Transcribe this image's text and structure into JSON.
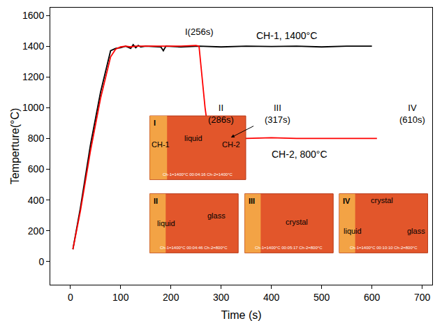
{
  "chart_data": {
    "type": "line",
    "x_label": "Time (s)",
    "y_label": "Temperture(°C)",
    "xlim": [
      -40,
      720
    ],
    "xticks": [
      0,
      100,
      200,
      300,
      400,
      500,
      600,
      700
    ],
    "ylim": [
      -150,
      1650
    ],
    "yticks": [
      0,
      200,
      400,
      600,
      800,
      1000,
      1200,
      1400,
      1600
    ],
    "grid": false,
    "series": [
      {
        "name": "CH-1, 1400°C",
        "color": "#000000",
        "label_at": [
          430,
          1468
        ],
        "x": [
          5,
          20,
          40,
          60,
          80,
          90,
          100,
          110,
          120,
          125,
          130,
          135,
          140,
          150,
          180,
          185,
          190,
          220,
          256,
          300,
          350,
          400,
          450,
          500,
          550,
          600
        ],
        "values": [
          80,
          350,
          760,
          1100,
          1370,
          1385,
          1390,
          1400,
          1385,
          1410,
          1390,
          1405,
          1395,
          1400,
          1395,
          1370,
          1400,
          1395,
          1400,
          1395,
          1400,
          1398,
          1400,
          1395,
          1400,
          1400
        ]
      },
      {
        "name": "CH-2, 800°C",
        "color": "#ff0000",
        "label_at": [
          456,
          700
        ],
        "x": [
          5,
          20,
          40,
          60,
          80,
          90,
          100,
          110,
          120,
          130,
          180,
          220,
          250,
          256,
          262,
          268,
          275,
          286,
          300,
          317,
          350,
          400,
          450,
          500,
          550,
          610
        ],
        "values": [
          80,
          330,
          720,
          1060,
          1330,
          1380,
          1395,
          1400,
          1395,
          1400,
          1400,
          1400,
          1405,
          1400,
          1200,
          1000,
          830,
          815,
          805,
          800,
          800,
          805,
          800,
          800,
          802,
          800
        ]
      }
    ],
    "annotations": [
      {
        "lines": [
          "I(256s)"
        ],
        "x": 256,
        "y": 1495
      },
      {
        "lines": [
          "II",
          "(286s)"
        ],
        "x": 300,
        "y": 960,
        "arrow_to": [
          286,
          815
        ]
      },
      {
        "lines": [
          "III",
          "(317s)"
        ],
        "x": 412,
        "y": 960,
        "arrow_to": [
          317,
          802
        ]
      },
      {
        "lines": [
          "IV",
          "(610s)"
        ],
        "x": 680,
        "y": 960
      }
    ],
    "insets": [
      {
        "label": "I",
        "x": [
          158,
          349
        ],
        "y": [
          533,
          947
        ],
        "texts": [
          {
            "text": "CH-1",
            "x": 180,
            "y": 760
          },
          {
            "text": "liquid",
            "x": 245,
            "y": 800
          },
          {
            "text": "CH-2",
            "x": 320,
            "y": 760
          }
        ],
        "caption": "Ch-1=1400°C 00:04:16 Ch-2=1400°C"
      },
      {
        "label": "II",
        "x": [
          158,
          334
        ],
        "y": [
          57,
          441
        ],
        "texts": [
          {
            "text": "liquid",
            "x": 190,
            "y": 250
          },
          {
            "text": "glass",
            "x": 290,
            "y": 300
          }
        ],
        "caption": "Ch-1=1400°C 00:04:46 Ch-2=800°C"
      },
      {
        "label": "III",
        "x": [
          347,
          523
        ],
        "y": [
          57,
          441
        ],
        "texts": [
          {
            "text": "crystal",
            "x": 450,
            "y": 260
          }
        ],
        "caption": "Ch-1=1400°C 00:05:17 Ch-2=800°C"
      },
      {
        "label": "IV",
        "x": [
          535,
          711
        ],
        "y": [
          57,
          441
        ],
        "texts": [
          {
            "text": "crystal",
            "x": 620,
            "y": 400
          },
          {
            "text": "liquid",
            "x": 562,
            "y": 200
          },
          {
            "text": "glass",
            "x": 688,
            "y": 200
          }
        ],
        "caption": "Ch-1=1400°C 00:10:10 Ch-2=800°C"
      }
    ]
  }
}
